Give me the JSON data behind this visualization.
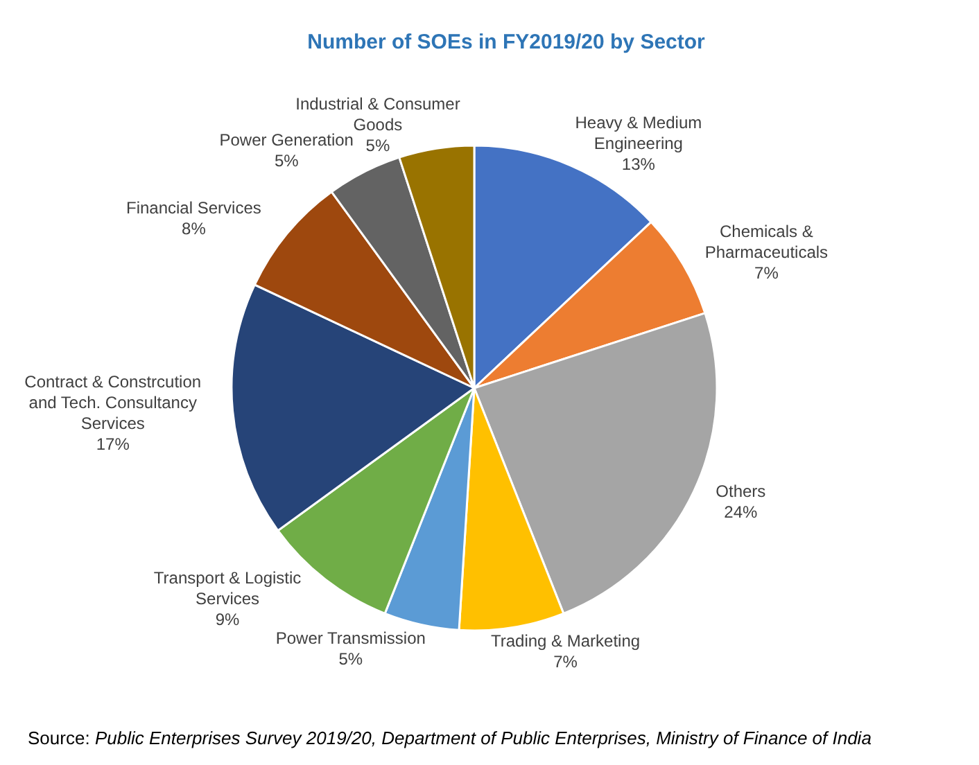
{
  "chart_data": {
    "type": "pie",
    "title": "Number of SOEs in FY2019/20 by Sector",
    "categories": [
      "Heavy & Medium Engineering",
      "Chemicals & Pharmaceuticals",
      "Others",
      "Trading & Marketing",
      "Power Transmission",
      "Transport & Logistic Services",
      "Contract & Constrcution and Tech. Consultancy Services",
      "Financial Services",
      "Power Generation",
      "Industrial & Consumer Goods"
    ],
    "values": [
      13,
      7,
      24,
      7,
      5,
      9,
      17,
      8,
      5,
      5
    ],
    "value_labels": [
      "13%",
      "7%",
      "24%",
      "7%",
      "5%",
      "9%",
      "17%",
      "8%",
      "5%",
      "5%"
    ],
    "colors": [
      "#4472c4",
      "#ed7d31",
      "#a5a5a5",
      "#ffc000",
      "#5b9bd5",
      "#70ad47",
      "#264478",
      "#9e480e",
      "#636363",
      "#997300"
    ],
    "annotations": [
      "Source: Public Enterprises Survey 2019/20, Department of Public Enterprises, Ministry of Finance of India"
    ],
    "legend": false
  }
}
